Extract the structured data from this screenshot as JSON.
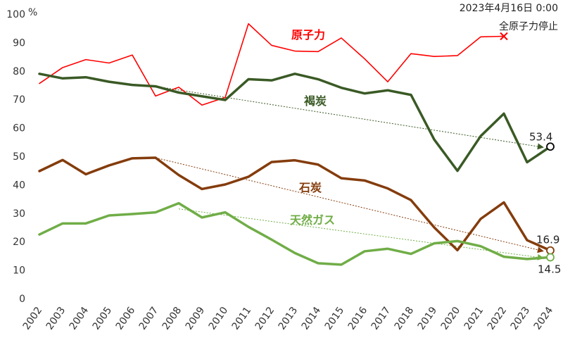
{
  "chart_data": {
    "type": "line",
    "ylabel": "%",
    "ylim": [
      0,
      100
    ],
    "yticks": [
      "0",
      "10",
      "20",
      "30",
      "40",
      "50",
      "60",
      "70",
      "80",
      "90",
      "100"
    ],
    "categories": [
      "2002",
      "2003",
      "2004",
      "2005",
      "2006",
      "2007",
      "2008",
      "2009",
      "2010",
      "2011",
      "2012",
      "2013",
      "2014",
      "2015",
      "2016",
      "2017",
      "2018",
      "2019",
      "2020",
      "2021",
      "2022",
      "2023",
      "2024"
    ],
    "series": [
      {
        "name": "原子力",
        "color": "#ff0000",
        "values": [
          75.6,
          81.2,
          84.0,
          82.8,
          85.6,
          71.2,
          74.3,
          68.0,
          70.7,
          96.6,
          89.0,
          87.0,
          86.8,
          91.6,
          84.3,
          76.2,
          86.1,
          85.1,
          85.4,
          92.0,
          92.2,
          null,
          null
        ]
      },
      {
        "name": "褐炭",
        "color": "#3a5a25",
        "values": [
          79.0,
          77.4,
          77.8,
          76.2,
          75.1,
          74.6,
          72.4,
          71.1,
          69.8,
          77.1,
          76.7,
          79.0,
          77.1,
          74.1,
          72.1,
          73.2,
          71.6,
          55.9,
          44.9,
          57.1,
          65.0,
          47.9,
          53.4
        ]
      },
      {
        "name": "石炭",
        "color": "#843c0c",
        "values": [
          44.8,
          48.7,
          43.7,
          46.8,
          49.3,
          49.5,
          43.4,
          38.5,
          40.1,
          42.8,
          48.0,
          48.6,
          47.1,
          42.3,
          41.5,
          38.7,
          34.6,
          25.0,
          17.0,
          28.0,
          33.8,
          20.5,
          16.9
        ]
      },
      {
        "name": "天然ガス",
        "color": "#70ad47",
        "values": [
          22.5,
          26.4,
          26.4,
          29.2,
          29.7,
          30.3,
          33.5,
          28.5,
          30.3,
          25.2,
          20.7,
          16.0,
          12.4,
          11.9,
          16.6,
          17.5,
          15.7,
          19.4,
          20.2,
          18.4,
          14.7,
          13.9,
          14.5
        ]
      }
    ],
    "trendlines": [
      {
        "series": "褐炭",
        "color": "#3a5a25",
        "from": [
          "2007",
          74.6
        ],
        "to": [
          "2024",
          53.4
        ]
      },
      {
        "series": "石炭",
        "color": "#843c0c",
        "from": [
          "2007",
          49.5
        ],
        "to": [
          "2024",
          16.9
        ]
      },
      {
        "series": "天然ガス",
        "color": "#70ad47",
        "from": [
          "2008",
          31.5
        ],
        "to": [
          "2024",
          14.5
        ]
      }
    ],
    "end_labels": [
      {
        "series": "褐炭",
        "text": "53.4"
      },
      {
        "series": "石炭",
        "text": "16.9"
      },
      {
        "series": "天然ガス",
        "text": "14.5"
      }
    ],
    "annotation": {
      "line1": "2023年4月16日 0:00",
      "line2": "全原子力停止",
      "marker_series": "原子力",
      "marker_category": "2022"
    },
    "grid": false
  }
}
